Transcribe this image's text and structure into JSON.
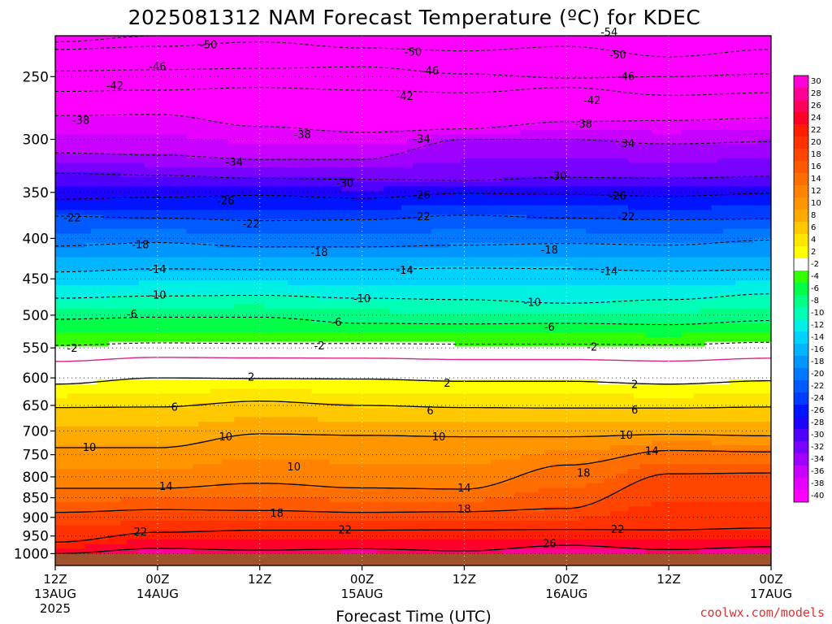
{
  "chart_data": {
    "type": "heatmap",
    "title": "2025081312 NAM Forecast Temperature (ºC) for KDEC",
    "xlabel": "Forecast Time (UTC)",
    "ylabel": "",
    "y_scale": "log-pressure",
    "ylim": [
      1000,
      200
    ],
    "y_ticks": [
      250,
      300,
      350,
      400,
      450,
      500,
      550,
      600,
      650,
      700,
      750,
      800,
      850,
      900,
      950,
      1000
    ],
    "x_ticks": [
      {
        "hour": "12Z",
        "date": "13AUG",
        "year": "2025"
      },
      {
        "hour": "00Z",
        "date": "14AUG",
        "year": ""
      },
      {
        "hour": "12Z",
        "date": "",
        "year": ""
      },
      {
        "hour": "00Z",
        "date": "15AUG",
        "year": ""
      },
      {
        "hour": "12Z",
        "date": "",
        "year": ""
      },
      {
        "hour": "00Z",
        "date": "16AUG",
        "year": ""
      },
      {
        "hour": "12Z",
        "date": "",
        "year": ""
      },
      {
        "hour": "00Z",
        "date": "17AUG",
        "year": ""
      }
    ],
    "grid": true,
    "colorbar": {
      "position": "right",
      "levels": [
        30,
        28,
        26,
        24,
        22,
        20,
        18,
        16,
        14,
        12,
        10,
        8,
        6,
        4,
        2,
        -2,
        -4,
        -6,
        -8,
        -10,
        -12,
        -14,
        -16,
        -18,
        -20,
        -22,
        -24,
        -26,
        -28,
        -30,
        -32,
        -34,
        -36,
        -38,
        -40
      ],
      "colors": [
        "#ff00d8",
        "#ff0096",
        "#ff005a",
        "#ff0028",
        "#ff1e00",
        "#ff3200",
        "#ff4600",
        "#ff5a00",
        "#ff6e00",
        "#ff8200",
        "#ff9600",
        "#ffaa00",
        "#ffc800",
        "#ffe600",
        "#ffff00",
        "#ffffff",
        "#32ff00",
        "#00ff46",
        "#00ff82",
        "#00ffb4",
        "#00f0e6",
        "#00d2ff",
        "#00b4ff",
        "#0096ff",
        "#0078ff",
        "#005aff",
        "#003cff",
        "#0014ff",
        "#1e00ff",
        "#5000ff",
        "#7800ff",
        "#a000ff",
        "#c800ff",
        "#e600ff",
        "#ff00ff"
      ]
    },
    "contours": [
      {
        "value": -54,
        "pressure_profile": [
          226,
          222,
          220,
          219,
          218,
          218,
          218,
          220
        ]
      },
      {
        "value": -50,
        "pressure_profile": [
          231,
          229,
          226,
          230,
          232,
          229,
          236,
          231
        ]
      },
      {
        "value": -46,
        "pressure_profile": [
          246,
          245,
          244,
          243,
          248,
          251,
          250,
          248
        ]
      },
      {
        "value": -42,
        "pressure_profile": [
          261,
          260,
          258,
          260,
          262,
          258,
          264,
          262
        ]
      },
      {
        "value": -38,
        "pressure_profile": [
          280,
          279,
          289,
          294,
          291,
          285,
          284,
          282
        ]
      },
      {
        "value": -34,
        "pressure_profile": [
          312,
          314,
          318,
          318,
          300,
          300,
          304,
          302
        ]
      },
      {
        "value": -30,
        "pressure_profile": [
          331,
          333,
          336,
          337,
          338,
          335,
          336,
          334
        ]
      },
      {
        "value": -26,
        "pressure_profile": [
          357,
          355,
          353,
          356,
          351,
          352,
          354,
          351
        ]
      },
      {
        "value": -22,
        "pressure_profile": [
          375,
          377,
          380,
          379,
          374,
          377,
          379,
          378
        ]
      },
      {
        "value": -18,
        "pressure_profile": [
          409,
          405,
          410,
          410,
          408,
          406,
          408,
          402
        ]
      },
      {
        "value": -14,
        "pressure_profile": [
          441,
          437,
          438,
          438,
          436,
          437,
          440,
          438
        ]
      },
      {
        "value": -10,
        "pressure_profile": [
          476,
          473,
          472,
          476,
          478,
          483,
          478,
          470
        ]
      },
      {
        "value": -6,
        "pressure_profile": [
          506,
          503,
          503,
          512,
          513,
          512,
          514,
          508
        ]
      },
      {
        "value": -2,
        "pressure_profile": [
          546,
          542,
          543,
          543,
          544,
          544,
          545,
          541
        ]
      },
      {
        "value": 2,
        "pressure_profile": [
          611,
          600,
          601,
          602,
          606,
          606,
          611,
          605
        ]
      },
      {
        "value": 6,
        "pressure_profile": [
          654,
          653,
          642,
          650,
          654,
          655,
          655,
          653
        ]
      },
      {
        "value": 10,
        "pressure_profile": [
          735,
          735,
          706,
          709,
          712,
          712,
          707,
          710
        ]
      },
      {
        "value": 14,
        "pressure_profile": [
          827,
          827,
          815,
          826,
          829,
          773,
          741,
          744
        ]
      },
      {
        "value": 18,
        "pressure_profile": [
          887,
          880,
          882,
          887,
          885,
          877,
          793,
          791
        ]
      },
      {
        "value": 22,
        "pressure_profile": [
          967,
          940,
          934,
          934,
          933,
          932,
          933,
          928
        ]
      },
      {
        "value": 26,
        "pressure_profile": [
          1000,
          985,
          990,
          986,
          992,
          976,
          988,
          980
        ]
      }
    ],
    "contour_labels": [
      {
        "text": "-54",
        "hour": 65,
        "pressure": 220
      },
      {
        "text": "-50",
        "hour": 18,
        "pressure": 228
      },
      {
        "text": "-50",
        "hour": 42,
        "pressure": 233
      },
      {
        "text": "-50",
        "hour": 66,
        "pressure": 235
      },
      {
        "text": "-46",
        "hour": 12,
        "pressure": 243
      },
      {
        "text": "-46",
        "hour": 44,
        "pressure": 246
      },
      {
        "text": "-46",
        "hour": 67,
        "pressure": 250
      },
      {
        "text": "-42",
        "hour": 7,
        "pressure": 257
      },
      {
        "text": "-42",
        "hour": 41,
        "pressure": 265
      },
      {
        "text": "-42",
        "hour": 63,
        "pressure": 268
      },
      {
        "text": "-38",
        "hour": 3,
        "pressure": 284
      },
      {
        "text": "-38",
        "hour": 29,
        "pressure": 296
      },
      {
        "text": "-38",
        "hour": 62,
        "pressure": 287
      },
      {
        "text": "-34",
        "hour": 21,
        "pressure": 321
      },
      {
        "text": "-34",
        "hour": 43,
        "pressure": 300
      },
      {
        "text": "-34",
        "hour": 67,
        "pressure": 304
      },
      {
        "text": "-30",
        "hour": 34,
        "pressure": 341
      },
      {
        "text": "-30",
        "hour": 59,
        "pressure": 334
      },
      {
        "text": "-26",
        "hour": 20,
        "pressure": 359
      },
      {
        "text": "-26",
        "hour": 43,
        "pressure": 353
      },
      {
        "text": "-26",
        "hour": 66,
        "pressure": 354
      },
      {
        "text": "-22",
        "hour": 2,
        "pressure": 377
      },
      {
        "text": "-22",
        "hour": 23,
        "pressure": 384
      },
      {
        "text": "-22",
        "hour": 43,
        "pressure": 376
      },
      {
        "text": "-22",
        "hour": 67,
        "pressure": 376
      },
      {
        "text": "-18",
        "hour": 10,
        "pressure": 408
      },
      {
        "text": "-18",
        "hour": 31,
        "pressure": 417
      },
      {
        "text": "-18",
        "hour": 58,
        "pressure": 414
      },
      {
        "text": "-14",
        "hour": 12,
        "pressure": 438
      },
      {
        "text": "-14",
        "hour": 41,
        "pressure": 439
      },
      {
        "text": "-14",
        "hour": 65,
        "pressure": 441
      },
      {
        "text": "-10",
        "hour": 12,
        "pressure": 472
      },
      {
        "text": "-10",
        "hour": 36,
        "pressure": 477
      },
      {
        "text": "-10",
        "hour": 56,
        "pressure": 482
      },
      {
        "text": "-6",
        "hour": 9,
        "pressure": 499
      },
      {
        "text": "-6",
        "hour": 33,
        "pressure": 511
      },
      {
        "text": "-6",
        "hour": 58,
        "pressure": 518
      },
      {
        "text": "-2",
        "hour": 2,
        "pressure": 551
      },
      {
        "text": "-2",
        "hour": 31,
        "pressure": 547
      },
      {
        "text": "-2",
        "hour": 63,
        "pressure": 549
      },
      {
        "text": "2",
        "hour": 23,
        "pressure": 599
      },
      {
        "text": "2",
        "hour": 46,
        "pressure": 610
      },
      {
        "text": "2",
        "hour": 68,
        "pressure": 612
      },
      {
        "text": "6",
        "hour": 14,
        "pressure": 654
      },
      {
        "text": "6",
        "hour": 44,
        "pressure": 661
      },
      {
        "text": "6",
        "hour": 68,
        "pressure": 659
      },
      {
        "text": "10",
        "hour": 4,
        "pressure": 735
      },
      {
        "text": "10",
        "hour": 20,
        "pressure": 713
      },
      {
        "text": "10",
        "hour": 45,
        "pressure": 713
      },
      {
        "text": "10",
        "hour": 67,
        "pressure": 709
      },
      {
        "text": "10",
        "hour": 28,
        "pressure": 778
      },
      {
        "text": "14",
        "hour": 13,
        "pressure": 823
      },
      {
        "text": "14",
        "hour": 48,
        "pressure": 827
      },
      {
        "text": "14",
        "hour": 70,
        "pressure": 743
      },
      {
        "text": "18",
        "hour": 26,
        "pressure": 890
      },
      {
        "text": "18",
        "hour": 48,
        "pressure": 879
      },
      {
        "text": "18",
        "hour": 62,
        "pressure": 792
      },
      {
        "text": "22",
        "hour": 10,
        "pressure": 940
      },
      {
        "text": "22",
        "hour": 34,
        "pressure": 934
      },
      {
        "text": "22",
        "hour": 66,
        "pressure": 933
      },
      {
        "text": "26",
        "hour": 58,
        "pressure": 972
      }
    ]
  },
  "credit": "coolwx.com/models"
}
